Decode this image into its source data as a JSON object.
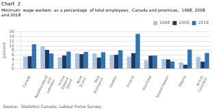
{
  "chart_data": {
    "type": "bar",
    "title": "Chart  2",
    "subtitle": "Minimum  wage workers  as a percentage  of total employees,  Canada and provinces,  1998, 2008 and 2018",
    "ylabel": "percent",
    "source": "Source:  Statistics Canada, Labour Force Survey.",
    "categories": [
      "Canada",
      "Newfoundland\nand\nLabrador",
      "Prince\nEdward\nIsland",
      "Nova\nScotia",
      "New\nBrunswick",
      "Quebec",
      "Ontario",
      "Manitoba",
      "Saskatchewan",
      "Alberta",
      "British\nColumbia"
    ],
    "series": [
      {
        "name": "1998",
        "color": "#a8c4e0",
        "values": [
          5.3,
          9.7,
          5.0,
          6.7,
          6.7,
          6.1,
          5.3,
          3.6,
          4.2,
          2.8,
          5.2
        ]
      },
      {
        "name": "2008",
        "color": "#1f3864",
        "values": [
          5.5,
          8.2,
          5.8,
          6.4,
          4.9,
          6.1,
          6.8,
          5.7,
          4.1,
          1.8,
          3.1
        ]
      },
      {
        "name": "2018",
        "color": "#2e75b6",
        "values": [
          10.7,
          6.7,
          7.5,
          7.3,
          7.2,
          8.1,
          15.2,
          5.8,
          3.2,
          8.4,
          6.9
        ]
      }
    ],
    "ylim": [
      0,
      16
    ],
    "yticks": [
      0,
      2,
      4,
      6,
      8,
      10,
      12,
      14,
      16
    ],
    "grid": true,
    "legend": "upper right"
  }
}
